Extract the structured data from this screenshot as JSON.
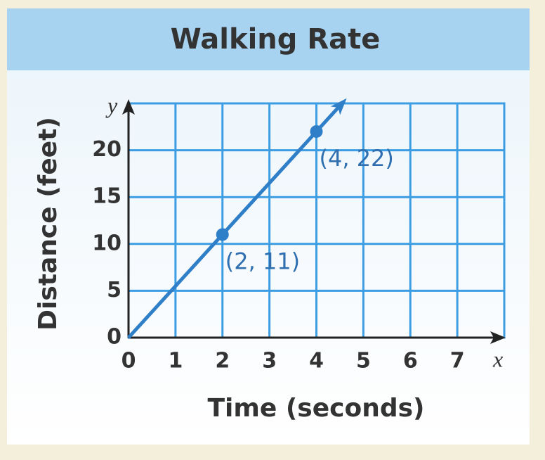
{
  "chart_data": {
    "type": "line",
    "title": "Walking Rate",
    "x_label": "Time (seconds)",
    "y_label": "Distance (feet)",
    "x_axis_name": "x",
    "y_axis_name": "y",
    "series": [
      {
        "x": [
          0,
          2,
          4
        ],
        "values": [
          0,
          11,
          22
        ],
        "color": "#2f7fc8"
      }
    ],
    "annotations": [
      {
        "text": "(2, 11)",
        "x": 2,
        "y": 11
      },
      {
        "text": "(4, 22)",
        "x": 4,
        "y": 22
      }
    ],
    "xlim": [
      0,
      8
    ],
    "xticks": [
      0,
      1,
      2,
      3,
      4,
      5,
      6,
      7
    ],
    "ylim": [
      0,
      25
    ],
    "yticks": [
      0,
      5,
      10,
      15,
      20
    ],
    "grid": true,
    "grid_color": "#3d9de3"
  }
}
